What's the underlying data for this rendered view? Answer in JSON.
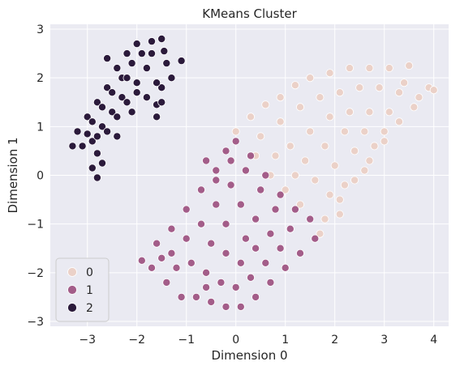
{
  "chart_data": {
    "type": "scatter",
    "title": "KMeans Cluster",
    "xlabel": "Dimension 0",
    "ylabel": "Dimension 1",
    "xlim": [
      -3.75,
      4.3
    ],
    "ylim": [
      -3.1,
      3.1
    ],
    "xticks": [
      -3,
      -2,
      -1,
      0,
      1,
      2,
      3,
      4
    ],
    "yticks": [
      -3,
      -2,
      -1,
      0,
      1,
      2,
      3
    ],
    "xtick_labels": [
      "−3",
      "−2",
      "−1",
      "0",
      "1",
      "2",
      "3",
      "4"
    ],
    "ytick_labels": [
      "−3",
      "−2",
      "−1",
      "0",
      "1",
      "2",
      "3"
    ],
    "grid": true,
    "legend_position": "lower-left",
    "colors": {
      "background": "#eaeaf2",
      "grid": "#ffffff",
      "marker_edge": "#ffffff",
      "series": [
        "#ebd1c8",
        "#a35d89",
        "#2b1a3b"
      ]
    },
    "series": [
      {
        "name": "0",
        "values": [
          {
            "x": 0.0,
            "y": 0.9
          },
          {
            "x": 0.3,
            "y": 1.2
          },
          {
            "x": 0.6,
            "y": 1.45
          },
          {
            "x": 0.9,
            "y": 1.6
          },
          {
            "x": 1.2,
            "y": 1.85
          },
          {
            "x": 1.5,
            "y": 2.0
          },
          {
            "x": 1.9,
            "y": 2.1
          },
          {
            "x": 2.3,
            "y": 2.2
          },
          {
            "x": 2.7,
            "y": 2.2
          },
          {
            "x": 3.1,
            "y": 2.2
          },
          {
            "x": 3.5,
            "y": 2.25
          },
          {
            "x": 3.9,
            "y": 1.8
          },
          {
            "x": 3.6,
            "y": 1.4
          },
          {
            "x": 3.3,
            "y": 1.1
          },
          {
            "x": 3.0,
            "y": 0.7
          },
          {
            "x": 2.7,
            "y": 0.3
          },
          {
            "x": 2.4,
            "y": -0.1
          },
          {
            "x": 2.1,
            "y": -0.5
          },
          {
            "x": 1.8,
            "y": -0.9
          },
          {
            "x": 1.7,
            "y": -1.2
          },
          {
            "x": 1.3,
            "y": -0.6
          },
          {
            "x": 1.0,
            "y": -0.3
          },
          {
            "x": 0.7,
            "y": 0.0
          },
          {
            "x": 0.4,
            "y": 0.4
          },
          {
            "x": 0.5,
            "y": 0.8
          },
          {
            "x": 0.9,
            "y": 1.1
          },
          {
            "x": 1.3,
            "y": 1.4
          },
          {
            "x": 1.7,
            "y": 1.6
          },
          {
            "x": 2.1,
            "y": 1.7
          },
          {
            "x": 2.5,
            "y": 1.8
          },
          {
            "x": 2.9,
            "y": 1.8
          },
          {
            "x": 3.3,
            "y": 1.7
          },
          {
            "x": 1.1,
            "y": 0.6
          },
          {
            "x": 1.5,
            "y": 0.9
          },
          {
            "x": 1.9,
            "y": 1.2
          },
          {
            "x": 2.3,
            "y": 1.3
          },
          {
            "x": 2.7,
            "y": 1.3
          },
          {
            "x": 3.1,
            "y": 1.3
          },
          {
            "x": 1.4,
            "y": 0.3
          },
          {
            "x": 1.8,
            "y": 0.6
          },
          {
            "x": 2.2,
            "y": 0.9
          },
          {
            "x": 2.6,
            "y": 0.9
          },
          {
            "x": 3.0,
            "y": 0.9
          },
          {
            "x": 1.6,
            "y": -0.1
          },
          {
            "x": 2.0,
            "y": 0.2
          },
          {
            "x": 2.4,
            "y": 0.5
          },
          {
            "x": 2.8,
            "y": 0.6
          },
          {
            "x": 1.9,
            "y": -0.4
          },
          {
            "x": 2.2,
            "y": -0.2
          },
          {
            "x": 2.6,
            "y": 0.1
          },
          {
            "x": 2.1,
            "y": -0.8
          },
          {
            "x": 1.2,
            "y": 0.0
          },
          {
            "x": 0.8,
            "y": 0.4
          },
          {
            "x": 3.7,
            "y": 1.6
          },
          {
            "x": 3.4,
            "y": 1.9
          },
          {
            "x": 4.0,
            "y": 1.75
          }
        ]
      },
      {
        "name": "1",
        "values": [
          {
            "x": -1.9,
            "y": -1.75
          },
          {
            "x": -1.6,
            "y": -1.4
          },
          {
            "x": -1.3,
            "y": -1.1
          },
          {
            "x": -1.0,
            "y": -0.7
          },
          {
            "x": -0.7,
            "y": -0.3
          },
          {
            "x": -0.4,
            "y": 0.1
          },
          {
            "x": -0.2,
            "y": 0.5
          },
          {
            "x": 0.0,
            "y": 0.7
          },
          {
            "x": 0.3,
            "y": 0.4
          },
          {
            "x": 0.6,
            "y": 0.0
          },
          {
            "x": 0.9,
            "y": -0.4
          },
          {
            "x": 1.2,
            "y": -0.7
          },
          {
            "x": 1.5,
            "y": -0.9
          },
          {
            "x": 1.6,
            "y": -1.3
          },
          {
            "x": 1.3,
            "y": -1.6
          },
          {
            "x": 1.0,
            "y": -1.9
          },
          {
            "x": 0.7,
            "y": -2.2
          },
          {
            "x": 0.4,
            "y": -2.5
          },
          {
            "x": 0.1,
            "y": -2.7
          },
          {
            "x": -0.2,
            "y": -2.7
          },
          {
            "x": -0.5,
            "y": -2.6
          },
          {
            "x": -0.8,
            "y": -2.5
          },
          {
            "x": -1.1,
            "y": -2.5
          },
          {
            "x": -1.4,
            "y": -2.2
          },
          {
            "x": -1.7,
            "y": -1.9
          },
          {
            "x": -1.3,
            "y": -1.6
          },
          {
            "x": -1.0,
            "y": -1.3
          },
          {
            "x": -0.7,
            "y": -1.0
          },
          {
            "x": -0.4,
            "y": -0.6
          },
          {
            "x": -0.1,
            "y": -0.2
          },
          {
            "x": 0.2,
            "y": 0.1
          },
          {
            "x": 0.5,
            "y": -0.3
          },
          {
            "x": 0.8,
            "y": -0.7
          },
          {
            "x": 1.1,
            "y": -1.1
          },
          {
            "x": 0.9,
            "y": -1.5
          },
          {
            "x": 0.6,
            "y": -1.8
          },
          {
            "x": 0.3,
            "y": -2.1
          },
          {
            "x": 0.0,
            "y": -2.3
          },
          {
            "x": -0.3,
            "y": -2.2
          },
          {
            "x": -0.6,
            "y": -2.0
          },
          {
            "x": -0.9,
            "y": -1.8
          },
          {
            "x": -0.5,
            "y": -1.4
          },
          {
            "x": -0.2,
            "y": -1.0
          },
          {
            "x": 0.1,
            "y": -0.6
          },
          {
            "x": 0.4,
            "y": -0.9
          },
          {
            "x": 0.7,
            "y": -1.2
          },
          {
            "x": 0.4,
            "y": -1.5
          },
          {
            "x": 0.1,
            "y": -1.8
          },
          {
            "x": -0.2,
            "y": -1.6
          },
          {
            "x": -0.4,
            "y": -0.1
          },
          {
            "x": -0.6,
            "y": 0.3
          },
          {
            "x": -1.2,
            "y": -1.9
          },
          {
            "x": -0.6,
            "y": -2.3
          },
          {
            "x": 0.2,
            "y": -1.3
          },
          {
            "x": -0.1,
            "y": 0.3
          },
          {
            "x": -1.5,
            "y": -1.7
          }
        ]
      },
      {
        "name": "2",
        "values": [
          {
            "x": -3.3,
            "y": 0.6
          },
          {
            "x": -3.2,
            "y": 0.9
          },
          {
            "x": -3.0,
            "y": 1.2
          },
          {
            "x": -2.8,
            "y": 1.5
          },
          {
            "x": -2.6,
            "y": 1.8
          },
          {
            "x": -2.4,
            "y": 2.2
          },
          {
            "x": -2.2,
            "y": 2.5
          },
          {
            "x": -2.0,
            "y": 2.7
          },
          {
            "x": -1.7,
            "y": 2.75
          },
          {
            "x": -1.5,
            "y": 2.8
          },
          {
            "x": -1.4,
            "y": 2.3
          },
          {
            "x": -1.1,
            "y": 2.35
          },
          {
            "x": -1.3,
            "y": 2.0
          },
          {
            "x": -1.5,
            "y": 1.8
          },
          {
            "x": -1.6,
            "y": 1.45
          },
          {
            "x": -1.5,
            "y": 1.5
          },
          {
            "x": -2.0,
            "y": 1.9
          },
          {
            "x": -2.3,
            "y": 1.6
          },
          {
            "x": -2.5,
            "y": 1.3
          },
          {
            "x": -2.7,
            "y": 1.0
          },
          {
            "x": -2.9,
            "y": 0.7
          },
          {
            "x": -3.1,
            "y": 0.6
          },
          {
            "x": -2.9,
            "y": 1.1
          },
          {
            "x": -2.7,
            "y": 1.4
          },
          {
            "x": -2.5,
            "y": 1.7
          },
          {
            "x": -2.3,
            "y": 2.0
          },
          {
            "x": -2.1,
            "y": 2.3
          },
          {
            "x": -1.9,
            "y": 2.5
          },
          {
            "x": -1.8,
            "y": 2.2
          },
          {
            "x": -2.0,
            "y": 1.7
          },
          {
            "x": -2.2,
            "y": 1.5
          },
          {
            "x": -2.4,
            "y": 1.2
          },
          {
            "x": -2.6,
            "y": 0.9
          },
          {
            "x": -2.8,
            "y": 0.8
          },
          {
            "x": -2.8,
            "y": 0.45
          },
          {
            "x": -2.7,
            "y": 0.25
          },
          {
            "x": -2.9,
            "y": 0.15
          },
          {
            "x": -2.8,
            "y": -0.05
          },
          {
            "x": -2.4,
            "y": 0.8
          },
          {
            "x": -2.1,
            "y": 1.3
          },
          {
            "x": -1.8,
            "y": 1.6
          },
          {
            "x": -1.6,
            "y": 1.9
          },
          {
            "x": -1.7,
            "y": 2.5
          },
          {
            "x": -2.6,
            "y": 2.4
          },
          {
            "x": -3.0,
            "y": 0.85
          },
          {
            "x": -2.2,
            "y": 2.0
          },
          {
            "x": -1.6,
            "y": 1.2
          },
          {
            "x": -1.45,
            "y": 2.55
          }
        ]
      }
    ]
  }
}
